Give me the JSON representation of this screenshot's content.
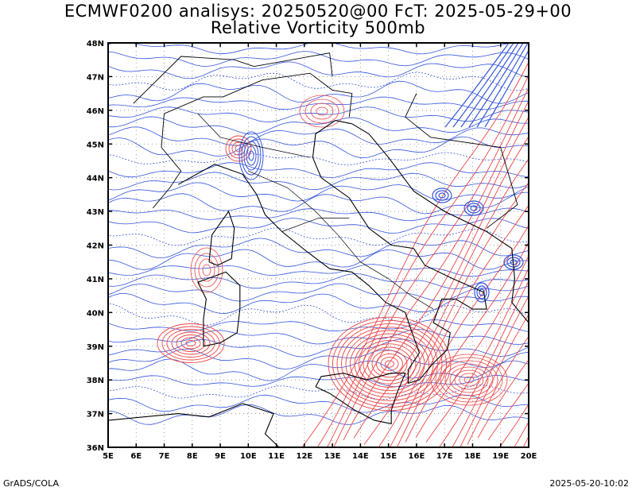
{
  "title": {
    "line1": "ECMWF0200 analisys: 20250520@00 FcT: 2025-05-29+00",
    "line2": "Relative Vorticity 500mb"
  },
  "map": {
    "lon_range": [
      5,
      20
    ],
    "lat_range": [
      36,
      48
    ],
    "lon_labels": [
      "5E",
      "6E",
      "7E",
      "8E",
      "9E",
      "10E",
      "11E",
      "12E",
      "13E",
      "14E",
      "15E",
      "16E",
      "17E",
      "18E",
      "19E",
      "20E"
    ],
    "lat_labels": [
      "48N",
      "47N",
      "46N",
      "45N",
      "44N",
      "43N",
      "42N",
      "41N",
      "40N",
      "39N",
      "38N",
      "37N",
      "36N"
    ],
    "gridlines": "dotted",
    "colors": {
      "positive_contour": "#ee4444",
      "negative_contour": "#3355dd",
      "coastline": "#000000",
      "grid": "#888888"
    }
  },
  "footer": {
    "left": "GrADS/COLA",
    "right": "2025-05-20-10:02"
  }
}
